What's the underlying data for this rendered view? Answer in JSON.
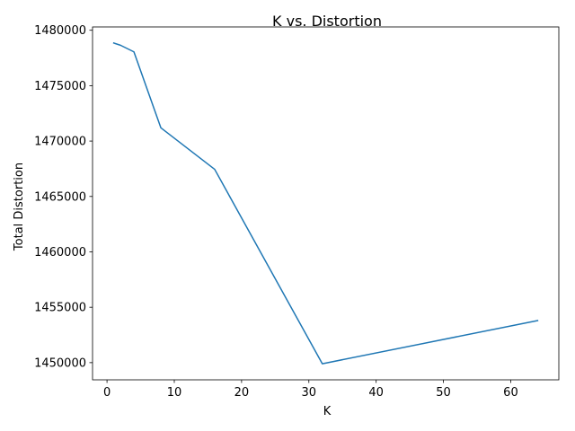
{
  "chart_data": {
    "type": "line",
    "title": "K vs. Distortion",
    "xlabel": "K",
    "ylabel": "Total Distortion",
    "xlim": [
      -2.15,
      67.15
    ],
    "ylim": [
      1448450,
      1480300
    ],
    "xticks": [
      0,
      10,
      20,
      30,
      40,
      50,
      60
    ],
    "xtick_labels": [
      "0",
      "10",
      "20",
      "30",
      "40",
      "50",
      "60"
    ],
    "yticks": [
      1450000,
      1455000,
      1460000,
      1465000,
      1470000,
      1475000,
      1480000
    ],
    "ytick_labels": [
      "1450000",
      "1455000",
      "1460000",
      "1465000",
      "1470000",
      "1475000",
      "1480000"
    ],
    "grid": false,
    "series": [
      {
        "color": "#1f77b4",
        "x": [
          1,
          2,
          4,
          8,
          16,
          32,
          64
        ],
        "y": [
          1478850,
          1478650,
          1478050,
          1471200,
          1467450,
          1449900,
          1453800
        ]
      }
    ]
  }
}
